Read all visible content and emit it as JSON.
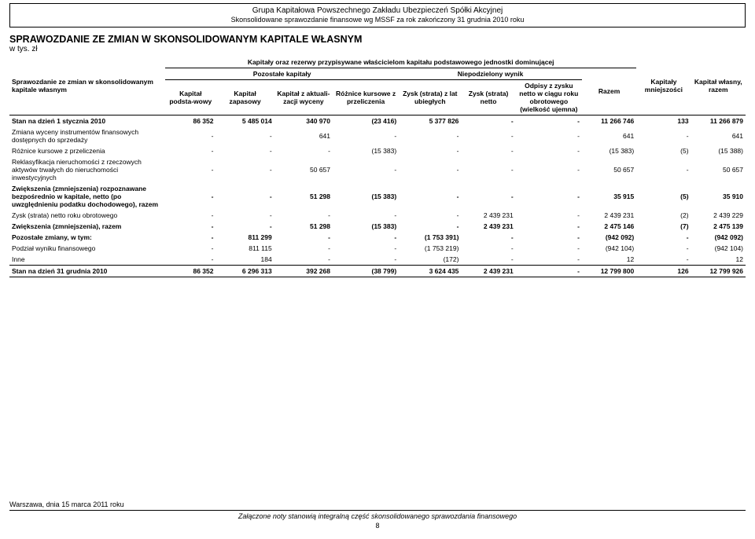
{
  "header": {
    "line1": "Grupa Kapitałowa Powszechnego Zakładu Ubezpieczeń Spółki Akcyjnej",
    "line2": "Skonsolidowane sprawozdanie finansowe wg MSSF za rok zakończony 31 grudnia 2010 roku"
  },
  "title": "SPRAWOZDANIE ZE ZMIAN W SKONSOLIDOWANYM KAPITALE WŁASNYM",
  "unit": "w tys. zł",
  "headers": {
    "top_span": "Kapitały oraz rezerwy przypisywane właścicielom kapitału podstawowego jednostki dominującej",
    "pozostale": "Pozostałe kapitały",
    "niepodzielony": "Niepodzielony wynik",
    "mniejszosci": "Kapitały mniejszości",
    "wlasny_razem": "Kapitał własny, razem",
    "row_label": "Sprawozdanie ze zmian w skonsolidowanym kapitale własnym",
    "c1": "Kapitał podsta-wowy",
    "c2": "Kapitał zapasowy",
    "c3": "Kapitał z aktuali-zacji wyceny",
    "c4": "Różnice kursowe z przeliczenia",
    "c5": "Zysk (strata) z lat ubiegłych",
    "c6": "Zysk (strata) netto",
    "c7": "Odpisy z zysku netto w ciągu roku obrotowego (wielkość ujemna)",
    "c8": "Razem"
  },
  "rows": [
    {
      "label": "Stan na dzień 1 stycznia 2010",
      "bold": true,
      "v": [
        "86 352",
        "5 485 014",
        "340 970",
        "(23 416)",
        "5 377 826",
        "-",
        "-",
        "11 266 746",
        "133",
        "11 266 879"
      ]
    },
    {
      "label": "Zmiana wyceny instrumentów finansowych dostępnych do sprzedaży",
      "v": [
        "-",
        "-",
        "641",
        "-",
        "-",
        "-",
        "-",
        "641",
        "-",
        "641"
      ]
    },
    {
      "label": "Różnice kursowe z przeliczenia",
      "v": [
        "-",
        "-",
        "-",
        "(15 383)",
        "-",
        "-",
        "-",
        "(15 383)",
        "(5)",
        "(15 388)"
      ]
    },
    {
      "label": "Reklasyfikacja nieruchomości z rzeczowych aktywów trwałych do nieruchomości inwestycyjnych",
      "v": [
        "-",
        "-",
        "50 657",
        "-",
        "-",
        "-",
        "-",
        "50 657",
        "-",
        "50 657"
      ]
    },
    {
      "label": "Zwiększenia (zmniejszenia) rozpoznawane bezpośrednio w kapitale, netto (po uwzględnieniu podatku dochodowego), razem",
      "bold": true,
      "v": [
        "-",
        "-",
        "51 298",
        "(15 383)",
        "-",
        "-",
        "-",
        "35 915",
        "(5)",
        "35 910"
      ]
    },
    {
      "label": "Zysk (strata) netto roku obrotowego",
      "v": [
        "-",
        "-",
        "-",
        "-",
        "-",
        "2 439 231",
        "-",
        "2 439 231",
        "(2)",
        "2 439 229"
      ]
    },
    {
      "label": "Zwiększenia (zmniejszenia), razem",
      "bold": true,
      "v": [
        "-",
        "-",
        "51 298",
        "(15 383)",
        "-",
        "2 439 231",
        "-",
        "2 475 146",
        "(7)",
        "2 475 139"
      ]
    },
    {
      "label": "Pozostałe zmiany, w tym:",
      "bold": true,
      "v": [
        "-",
        "811 299",
        "-",
        "-",
        "(1 753 391)",
        "-",
        "-",
        "(942 092)",
        "-",
        "(942 092)"
      ]
    },
    {
      "label": "Podział wyniku finansowego",
      "v": [
        "-",
        "811 115",
        "-",
        "-",
        "(1 753 219)",
        "-",
        "-",
        "(942 104)",
        "-",
        "(942 104)"
      ]
    },
    {
      "label": "Inne",
      "v": [
        "-",
        "184",
        "-",
        "-",
        "(172)",
        "-",
        "-",
        "12",
        "-",
        "12"
      ]
    },
    {
      "label": "Stan na dzień 31 grudnia 2010",
      "bold": true,
      "v": [
        "86 352",
        "6 296 313",
        "392 268",
        "(38 799)",
        "3 624 435",
        "2 439 231",
        "-",
        "12 799 800",
        "126",
        "12 799 926"
      ]
    }
  ],
  "footer": {
    "place_date": "Warszawa, dnia 15 marca 2011 roku",
    "note": "Załączone noty stanowią integralną część skonsolidowanego sprawozdania finansowego",
    "page": "8"
  },
  "colors": {
    "text": "#000000",
    "background": "#ffffff",
    "border": "#000000"
  },
  "col_widths_pct": [
    20,
    6.5,
    7.5,
    7.5,
    8.5,
    8,
    7,
    8.5,
    7,
    7,
    7
  ]
}
